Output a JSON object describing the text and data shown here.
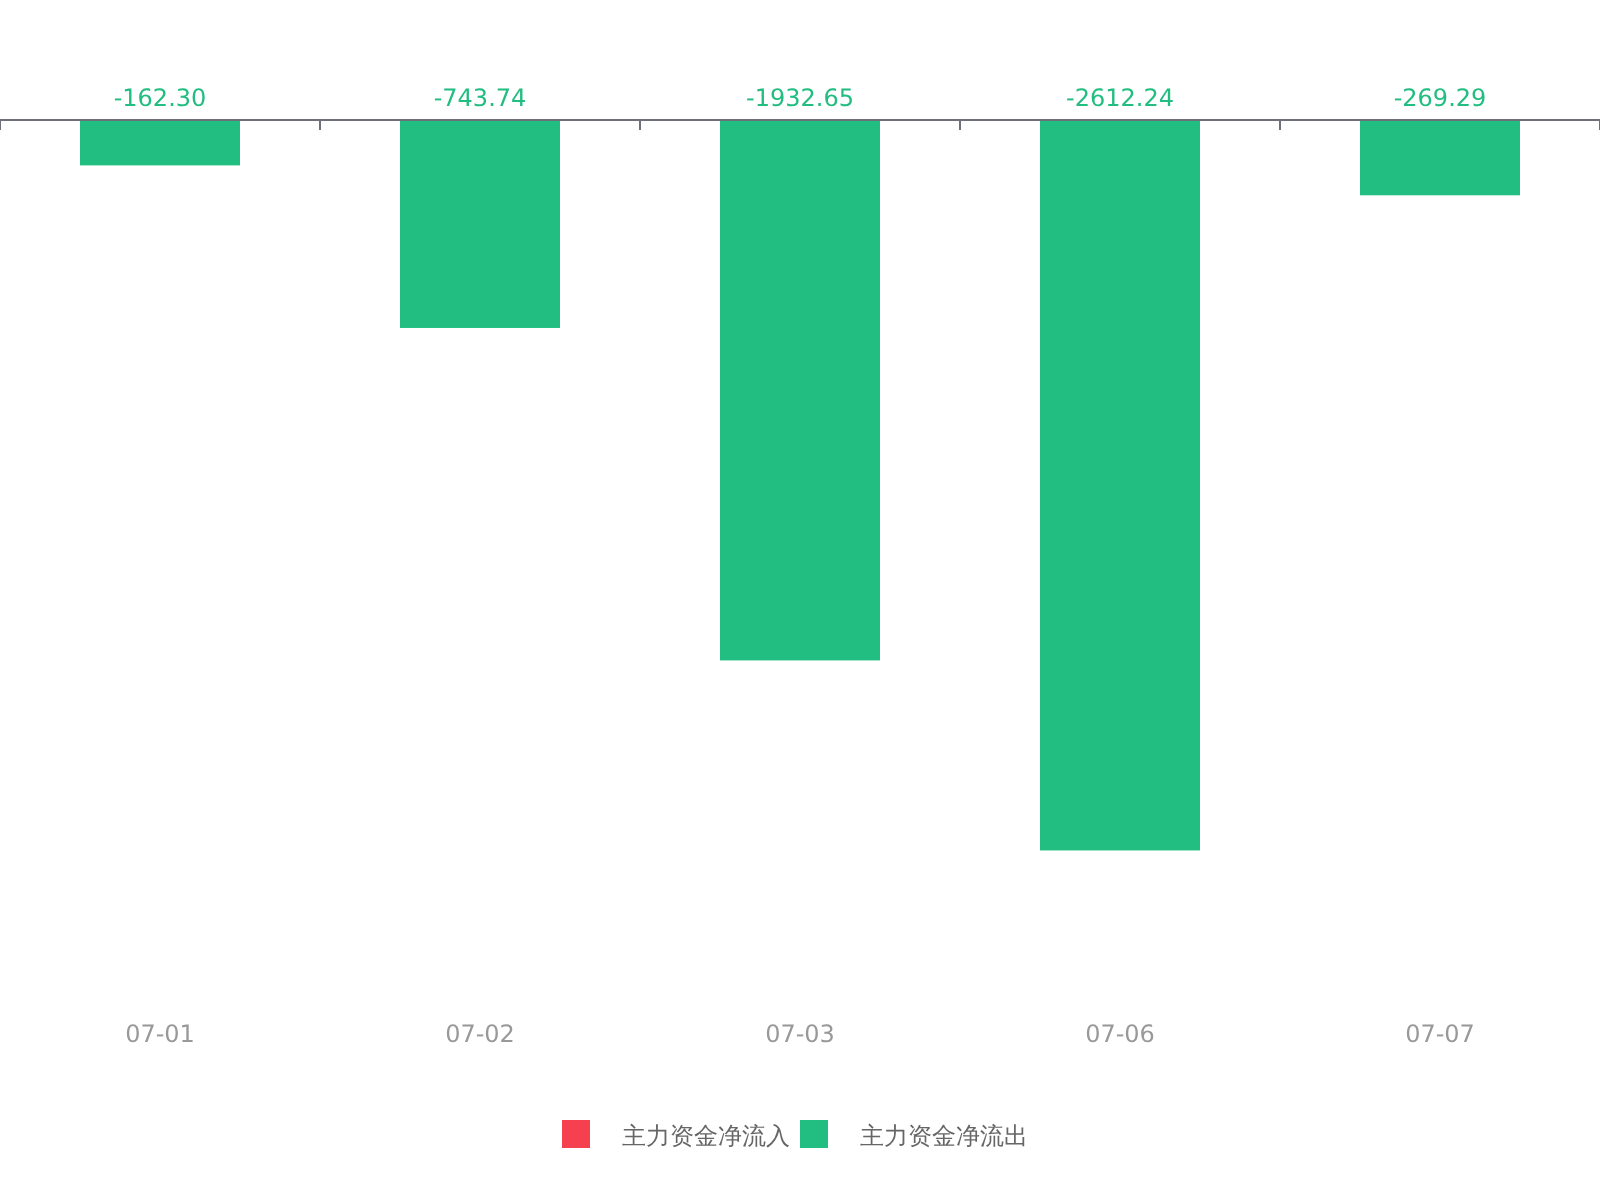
{
  "chart_data": {
    "type": "bar",
    "categories": [
      "07-01",
      "07-02",
      "07-03",
      "07-06",
      "07-07"
    ],
    "series": [
      {
        "name": "主力资金净流入",
        "color": "#f5414f",
        "values": [
          null,
          null,
          null,
          null,
          null
        ]
      },
      {
        "name": "主力资金净流出",
        "color": "#22bd80",
        "values": [
          -162.3,
          -743.74,
          -1932.65,
          -2612.24,
          -269.29
        ],
        "value_labels": [
          "-162.30",
          "-743.74",
          "-1932.65",
          "-2612.24",
          "-269.29"
        ]
      }
    ],
    "legend": "bottom"
  }
}
